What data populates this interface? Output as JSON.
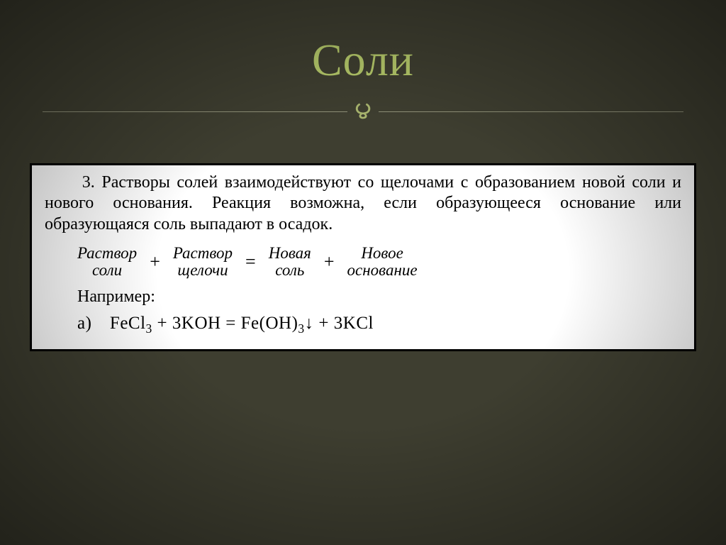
{
  "title": "Соли",
  "flourish_glyph": "౪",
  "colors": {
    "background": "#3e3e30",
    "title": "#b5c96a",
    "divider": "#8f9078",
    "flourish": "#a8b46e",
    "box_bg": "#ffffff",
    "box_border": "#000000",
    "text": "#000000"
  },
  "paragraph": "3. Растворы солей взаимодействуют со щелочами с образованием новой соли и нового основания. Реакция возможна, если образующееся основание или образующаяся соль выпадают в осадок.",
  "scheme": {
    "t1_l1": "Раствор",
    "t1_l2": "соли",
    "op1": "+",
    "t2_l1": "Раствор",
    "t2_l2": "щелочи",
    "op2": "=",
    "t3_l1": "Новая",
    "t3_l2": "соль",
    "op3": "+",
    "t4_l1": "Новое",
    "t4_l2": "основание"
  },
  "example_label": "Например:",
  "equation_html": "а) FeCl<sub>3</sub> + 3KOH = Fe(OH)<sub>3</sub>↓ + 3KCl"
}
